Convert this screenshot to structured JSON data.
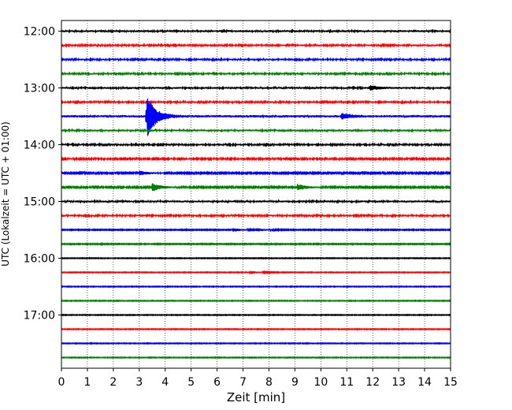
{
  "chart_data": {
    "type": "line",
    "title": "",
    "xlabel": "Zeit  [min]",
    "ylabel": "UTC (Lokalzeit = UTC + 01:00)",
    "xlim": [
      0,
      15
    ],
    "xticks": [
      "0",
      "1",
      "2",
      "3",
      "4",
      "5",
      "6",
      "7",
      "8",
      "9",
      "10",
      "11",
      "12",
      "13",
      "14",
      "15"
    ],
    "ytick_labels": [
      "12:00",
      "13:00",
      "14:00",
      "15:00",
      "16:00",
      "17:00"
    ],
    "grid": "vertical dotted",
    "trace_colors": [
      "#000000",
      "#ff0000",
      "#0000ff",
      "#008000"
    ],
    "traces": [
      {
        "start": "12:00",
        "color": "#000000",
        "amp": 0.45,
        "events": []
      },
      {
        "start": "12:15",
        "color": "#ff0000",
        "amp": 0.4,
        "events": []
      },
      {
        "start": "12:30",
        "color": "#0000ff",
        "amp": 0.4,
        "events": []
      },
      {
        "start": "12:45",
        "color": "#008000",
        "amp": 0.4,
        "events": []
      },
      {
        "start": "13:00",
        "color": "#000000",
        "amp": 0.45,
        "events": [
          {
            "t": 11.9,
            "a": 1.2
          }
        ]
      },
      {
        "start": "13:15",
        "color": "#ff0000",
        "amp": 0.4,
        "events": []
      },
      {
        "start": "13:30",
        "color": "#0000ff",
        "amp": 0.55,
        "events": [
          {
            "t": 3.3,
            "a": 12
          },
          {
            "t": 10.8,
            "a": 1.5
          }
        ]
      },
      {
        "start": "13:45",
        "color": "#008000",
        "amp": 0.45,
        "events": []
      },
      {
        "start": "14:00",
        "color": "#000000",
        "amp": 0.4,
        "events": []
      },
      {
        "start": "14:15",
        "color": "#ff0000",
        "amp": 0.35,
        "events": []
      },
      {
        "start": "14:30",
        "color": "#0000ff",
        "amp": 0.3,
        "events": [
          {
            "t": 3.0,
            "a": 1.2
          }
        ]
      },
      {
        "start": "14:45",
        "color": "#008000",
        "amp": 0.3,
        "events": [
          {
            "t": 3.5,
            "a": 2.2
          },
          {
            "t": 9.1,
            "a": 1.6
          }
        ]
      },
      {
        "start": "15:00",
        "color": "#000000",
        "amp": 0.45,
        "events": []
      },
      {
        "start": "15:15",
        "color": "#ff0000",
        "amp": 0.4,
        "events": []
      },
      {
        "start": "15:30",
        "color": "#0000ff",
        "amp": 0.2,
        "events": [
          {
            "t": 6.6,
            "a": 1.0
          },
          {
            "t": 7.5,
            "a": 0.9
          }
        ]
      },
      {
        "start": "15:45",
        "color": "#008000",
        "amp": 0.2,
        "events": []
      },
      {
        "start": "16:00",
        "color": "#000000",
        "amp": 0.15,
        "events": []
      },
      {
        "start": "16:15",
        "color": "#ff0000",
        "amp": 0.15,
        "events": [
          {
            "t": 7.3,
            "a": 0.8
          }
        ]
      },
      {
        "start": "16:30",
        "color": "#0000ff",
        "amp": 0.15,
        "events": []
      },
      {
        "start": "16:45",
        "color": "#008000",
        "amp": 0.15,
        "events": []
      },
      {
        "start": "17:00",
        "color": "#000000",
        "amp": 0.15,
        "events": []
      },
      {
        "start": "17:15",
        "color": "#ff0000",
        "amp": 0.15,
        "events": []
      },
      {
        "start": "17:30",
        "color": "#0000ff",
        "amp": 0.15,
        "events": []
      },
      {
        "start": "17:45",
        "color": "#008000",
        "amp": 0.15,
        "events": []
      }
    ]
  }
}
